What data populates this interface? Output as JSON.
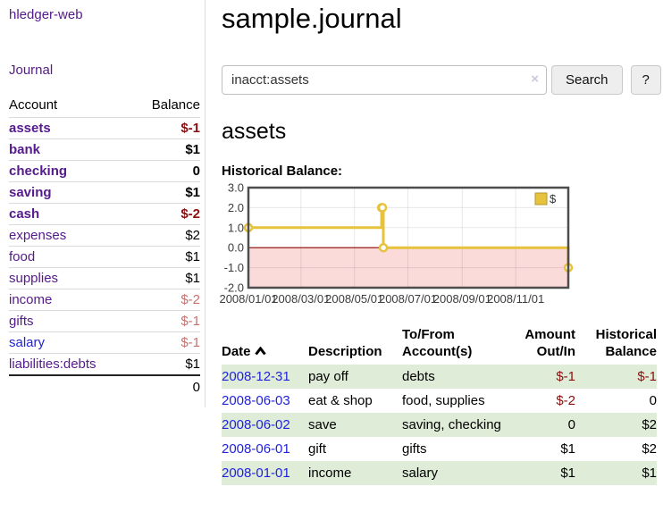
{
  "sidebar": {
    "app_title": "hledger-web",
    "journal_link": "Journal",
    "table": {
      "account_header": "Account",
      "balance_header": "Balance",
      "rows": [
        {
          "account": "assets",
          "balance": "$-1",
          "level": 1,
          "bold": true,
          "balance_class": "neg-dark"
        },
        {
          "account": "bank",
          "balance": "$1",
          "level": 2,
          "bold": true,
          "balance_class": ""
        },
        {
          "account": "checking",
          "balance": "0",
          "level": 3,
          "bold": true,
          "balance_class": ""
        },
        {
          "account": "saving",
          "balance": "$1",
          "level": 3,
          "bold": true,
          "balance_class": ""
        },
        {
          "account": "cash",
          "balance": "$-2",
          "level": 2,
          "bold": true,
          "balance_class": "neg-dark"
        },
        {
          "account": "expenses",
          "balance": "$2",
          "level": 1,
          "bold": false,
          "balance_class": ""
        },
        {
          "account": "food",
          "balance": "$1",
          "level": 2,
          "bold": false,
          "balance_class": ""
        },
        {
          "account": "supplies",
          "balance": "$1",
          "level": 2,
          "bold": false,
          "balance_class": ""
        },
        {
          "account": "income",
          "balance": "$-2",
          "level": 1,
          "bold": false,
          "balance_class": "neg-light"
        },
        {
          "account": "gifts",
          "balance": "$-1",
          "level": 2,
          "bold": false,
          "balance_class": "neg-light"
        },
        {
          "account": "salary",
          "balance": "$-1",
          "level": 2,
          "bold": false,
          "balance_class": "neg-light",
          "blue": true
        },
        {
          "account": "liabilities:debts",
          "balance": "$1",
          "level": 1,
          "bold": false,
          "balance_class": ""
        }
      ],
      "total": "0"
    }
  },
  "header": {
    "title": "sample.journal"
  },
  "search": {
    "value": "inacct:assets",
    "clear_icon": "×",
    "search_button": "Search",
    "help_button": "?"
  },
  "account_page": {
    "heading": "assets",
    "chart_label": "Historical Balance:"
  },
  "chart_data": {
    "type": "line",
    "style": "step",
    "title": "Historical Balance",
    "series": [
      {
        "name": "$",
        "color": "#e7c23d",
        "points": [
          [
            "2008-01-01",
            1
          ],
          [
            "2008-06-01",
            2
          ],
          [
            "2008-06-02",
            2
          ],
          [
            "2008-06-03",
            0
          ],
          [
            "2008-12-31",
            -1
          ]
        ]
      }
    ],
    "x_ticks": [
      "2008/01/01",
      "2008/03/01",
      "2008/05/01",
      "2008/07/01",
      "2008/09/01",
      "2008/11/01"
    ],
    "y_ticks": [
      "3.0",
      "2.0",
      "1.0",
      "0.0",
      "-1.0",
      "-2.0"
    ],
    "ylim": [
      -2,
      3
    ],
    "x_range": [
      "2008-01-01",
      "2008-12-31"
    ],
    "grid": true,
    "legend_position": "top-right",
    "negative_region_color": "#fbdada",
    "zero_line_color": "#8b0000",
    "tick_color": "#3c3c3c"
  },
  "register": {
    "columns": [
      "Date",
      "Description",
      "To/From Account(s)",
      "Amount Out/In",
      "Historical Balance"
    ],
    "rows": [
      {
        "date": "2008-12-31",
        "description": "pay off",
        "accounts": "debts",
        "amount": "$-1",
        "balance": "$-1",
        "amount_neg": true,
        "balance_neg": true
      },
      {
        "date": "2008-06-03",
        "description": "eat & shop",
        "accounts": "food, supplies",
        "amount": "$-2",
        "balance": "0",
        "amount_neg": true,
        "balance_neg": false
      },
      {
        "date": "2008-06-02",
        "description": "save",
        "accounts": "saving, checking",
        "amount": "0",
        "balance": "$2",
        "amount_neg": false,
        "balance_neg": false
      },
      {
        "date": "2008-06-01",
        "description": "gift",
        "accounts": "gifts",
        "amount": "$1",
        "balance": "$2",
        "amount_neg": false,
        "balance_neg": false
      },
      {
        "date": "2008-01-01",
        "description": "income",
        "accounts": "salary",
        "amount": "$1",
        "balance": "$1",
        "amount_neg": false,
        "balance_neg": false
      }
    ]
  }
}
